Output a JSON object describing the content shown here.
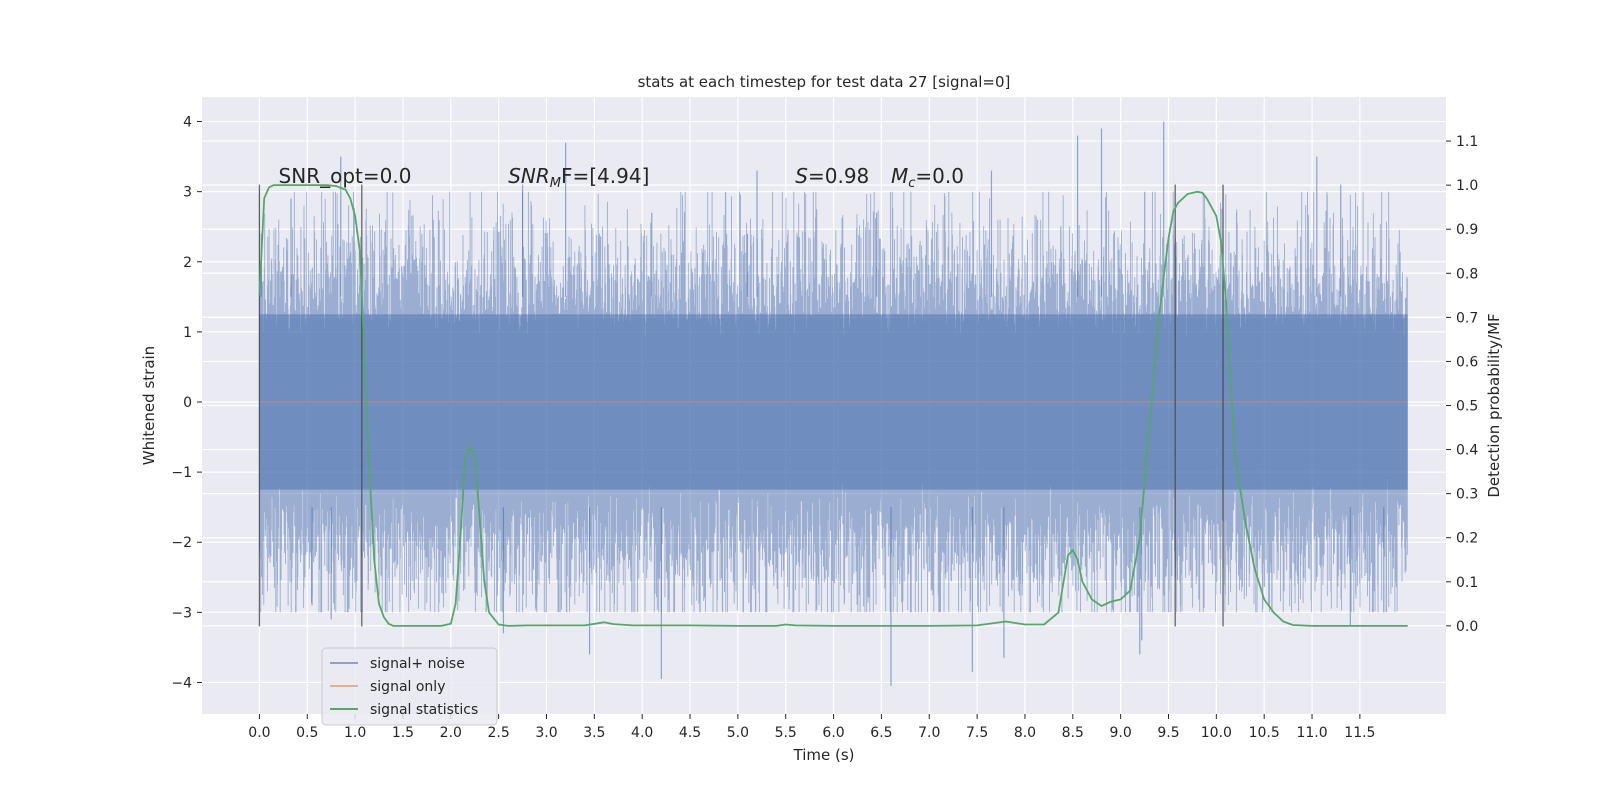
{
  "chart_data": {
    "type": "line",
    "title": "stats at each timestep for test data 27 [signal=0]",
    "xlabel": "Time (s)",
    "ylabel": "Whitened strain",
    "ylabel_right": "Detection probability/MF",
    "xlim": [
      -0.6,
      12.4
    ],
    "ylim": [
      -4.45,
      4.35
    ],
    "ylim_right": [
      -0.2,
      1.2
    ],
    "x_ticks": [
      0.0,
      0.5,
      1.0,
      1.5,
      2.0,
      2.5,
      3.0,
      3.5,
      4.0,
      4.5,
      5.0,
      5.5,
      6.0,
      6.5,
      7.0,
      7.5,
      8.0,
      8.5,
      9.0,
      9.5,
      10.0,
      10.5,
      11.0,
      11.5
    ],
    "x_tick_labels": [
      "0.0",
      "0.5",
      "1.0",
      "1.5",
      "2.0",
      "2.5",
      "3.0",
      "3.5",
      "4.0",
      "4.5",
      "5.0",
      "5.5",
      "6.0",
      "6.5",
      "7.0",
      "7.5",
      "8.0",
      "8.5",
      "9.0",
      "9.5",
      "10.0",
      "10.5",
      "11.0",
      "11.5"
    ],
    "y_ticks": [
      -4,
      -3,
      -2,
      -1,
      0,
      1,
      2,
      3,
      4
    ],
    "y_tick_labels": [
      "−4",
      "−3",
      "−2",
      "−1",
      "0",
      "1",
      "2",
      "3",
      "4"
    ],
    "y_right_ticks": [
      0.0,
      0.1,
      0.2,
      0.3,
      0.4,
      0.5,
      0.6,
      0.7,
      0.8,
      0.9,
      1.0,
      1.1
    ],
    "y_right_tick_labels": [
      "0.0",
      "0.1",
      "0.2",
      "0.3",
      "0.4",
      "0.5",
      "0.6",
      "0.7",
      "0.8",
      "0.9",
      "1.0",
      "1.1"
    ],
    "grid": true,
    "legend_position": "lower-left",
    "annotations": [
      {
        "text": "SNR_opt=0.0",
        "x": 0.2,
        "y": 3.12
      },
      {
        "text": "SNR",
        "sub": "M",
        "after": "F=[4.94]",
        "italic_prefix": true,
        "x": 2.6,
        "y": 3.12
      },
      {
        "text": "S",
        "after": "=0.98",
        "italic_prefix": true,
        "x": 5.6,
        "y": 3.12
      },
      {
        "text": "M",
        "sub": "c",
        "after": "=0.0",
        "italic_prefix": true,
        "x": 6.6,
        "y": 3.12
      }
    ],
    "vertical_lines": [
      {
        "x": 0.0,
        "y_range": [
          -3.2,
          3.1
        ]
      },
      {
        "x": 1.07,
        "y_range": [
          -3.2,
          3.1
        ]
      },
      {
        "x": 9.57,
        "y_range": [
          -3.2,
          3.1
        ]
      },
      {
        "x": 10.07,
        "y_range": [
          -3.2,
          3.1
        ]
      }
    ],
    "series": [
      {
        "name": "signal+ noise",
        "axis": "left",
        "color": "#4c72b0",
        "x_range": [
          0.0,
          12.0
        ],
        "band_core": [
          -1.25,
          1.25
        ],
        "band_typical": [
          -2.3,
          1.9
        ],
        "extreme_spikes": [
          {
            "x": 0.02,
            "y": 2.4
          },
          {
            "x": 0.33,
            "y": 2.9
          },
          {
            "x": 0.85,
            "y": 3.5
          },
          {
            "x": 2.75,
            "y": 3.1
          },
          {
            "x": 3.2,
            "y": 3.7
          },
          {
            "x": 4.1,
            "y": 2.7
          },
          {
            "x": 5.1,
            "y": 2.4
          },
          {
            "x": 5.2,
            "y": 3.3
          },
          {
            "x": 6.45,
            "y": 2.7
          },
          {
            "x": 7.65,
            "y": 3.3
          },
          {
            "x": 8.55,
            "y": 3.8
          },
          {
            "x": 8.8,
            "y": 3.9
          },
          {
            "x": 9.45,
            "y": 4.0
          },
          {
            "x": 11.05,
            "y": 3.5
          },
          {
            "x": 11.3,
            "y": 3.1
          },
          {
            "x": 0.55,
            "y": -2.9
          },
          {
            "x": 0.75,
            "y": -3.1
          },
          {
            "x": 2.55,
            "y": -3.3
          },
          {
            "x": 3.45,
            "y": -3.6
          },
          {
            "x": 4.2,
            "y": -3.95
          },
          {
            "x": 6.6,
            "y": -4.05
          },
          {
            "x": 7.45,
            "y": -3.85
          },
          {
            "x": 7.78,
            "y": -3.65
          },
          {
            "x": 9.2,
            "y": -3.6
          },
          {
            "x": 9.22,
            "y": -3.4
          },
          {
            "x": 11.4,
            "y": -3.2
          },
          {
            "x": 11.75,
            "y": -3.0
          }
        ]
      },
      {
        "name": "signal only",
        "axis": "left",
        "color": "#dd8452",
        "x": [
          0.0,
          12.0
        ],
        "y": [
          0.0,
          0.0
        ]
      },
      {
        "name": "signal statistics",
        "axis": "right",
        "color": "#55a868",
        "x": [
          0.0,
          0.05,
          0.1,
          0.15,
          0.2,
          0.3,
          0.5,
          0.7,
          0.8,
          0.9,
          0.95,
          1.0,
          1.05,
          1.1,
          1.15,
          1.2,
          1.25,
          1.3,
          1.35,
          1.4,
          1.5,
          1.7,
          1.9,
          2.0,
          2.05,
          2.1,
          2.15,
          2.2,
          2.25,
          2.3,
          2.35,
          2.4,
          2.5,
          2.6,
          2.8,
          3.4,
          3.6,
          3.7,
          3.9,
          4.5,
          5.0,
          5.4,
          5.5,
          5.6,
          6.0,
          7.0,
          7.5,
          7.8,
          8.0,
          8.2,
          8.35,
          8.45,
          8.5,
          8.55,
          8.6,
          8.7,
          8.8,
          8.9,
          9.0,
          9.1,
          9.2,
          9.3,
          9.4,
          9.5,
          9.55,
          9.6,
          9.7,
          9.8,
          9.85,
          9.9,
          10.0,
          10.05,
          10.1,
          10.15,
          10.2,
          10.3,
          10.4,
          10.5,
          10.6,
          10.7,
          10.8,
          11.0,
          11.5,
          12.0
        ],
        "y": [
          0.75,
          0.97,
          0.995,
          1.0,
          1.0,
          1.0,
          1.0,
          1.0,
          0.998,
          0.99,
          0.97,
          0.93,
          0.85,
          0.6,
          0.35,
          0.15,
          0.05,
          0.02,
          0.005,
          0.0,
          0.0,
          0.0,
          0.0,
          0.005,
          0.05,
          0.2,
          0.38,
          0.405,
          0.39,
          0.25,
          0.1,
          0.03,
          0.003,
          0.0,
          0.001,
          0.001,
          0.008,
          0.004,
          0.001,
          0.001,
          0.0,
          0.0,
          0.003,
          0.001,
          0.0,
          0.0,
          0.001,
          0.01,
          0.003,
          0.003,
          0.03,
          0.16,
          0.172,
          0.15,
          0.1,
          0.06,
          0.045,
          0.055,
          0.06,
          0.08,
          0.2,
          0.45,
          0.7,
          0.88,
          0.94,
          0.96,
          0.98,
          0.985,
          0.983,
          0.97,
          0.93,
          0.87,
          0.74,
          0.55,
          0.38,
          0.24,
          0.13,
          0.06,
          0.03,
          0.01,
          0.002,
          0.0,
          0.0,
          0.0
        ]
      }
    ]
  }
}
